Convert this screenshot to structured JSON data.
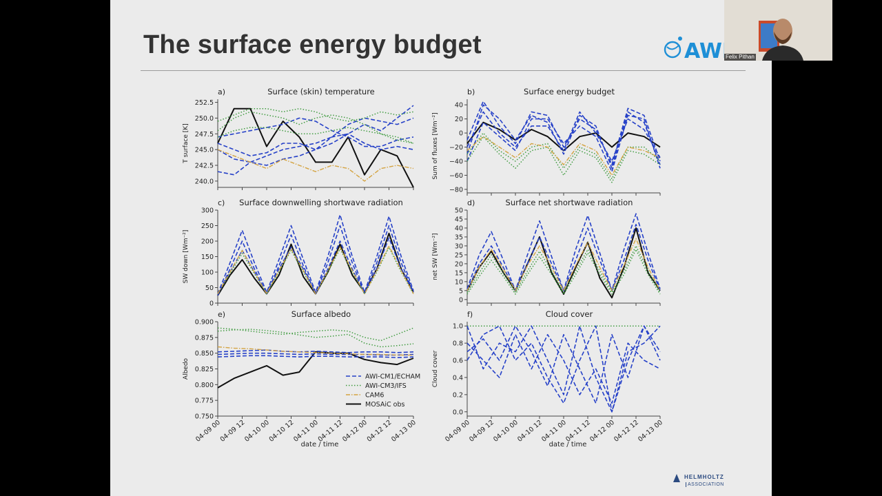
{
  "slide": {
    "title": "The surface energy budget",
    "logo_text": "AWI",
    "footer_logo": {
      "name": "HELMHOLTZ",
      "sub": "ASSOCIATION"
    }
  },
  "webcam": {
    "presenter_name": "Felix Pithan"
  },
  "colors": {
    "awi": "#2540c8",
    "ifs": "#3f9b3f",
    "cam": "#d4a340",
    "obs": "#111111"
  },
  "x_axis": {
    "xlabel": "date / time",
    "tick_labels": [
      "04-09 00",
      "04-09 12",
      "04-10 00",
      "04-10 12",
      "04-11 00",
      "04-11 12",
      "04-12 00",
      "04-12 12",
      "04-13 00"
    ],
    "xlim": [
      0,
      96
    ]
  },
  "legend": {
    "location": "lower right of panel e",
    "entries": [
      {
        "label": "AWI-CM1/ECHAM",
        "style": "dashed",
        "color": "#2540c8"
      },
      {
        "label": "AWI-CM3/IFS",
        "style": "dotted",
        "color": "#3f9b3f"
      },
      {
        "label": "CAM6",
        "style": "dashdot",
        "color": "#d4a340"
      },
      {
        "label": "MOSAiC obs",
        "style": "solid",
        "color": "#111111"
      }
    ]
  },
  "chart_data": [
    {
      "panel": "a)",
      "type": "line",
      "title": "Surface (skin) temperature",
      "ylabel": "T surface [K]",
      "ylim": [
        239,
        253
      ],
      "yticks": [
        "240.0",
        "242.5",
        "245.0",
        "247.5",
        "250.0",
        "252.5"
      ],
      "x": [
        0,
        8,
        16,
        24,
        32,
        40,
        48,
        56,
        64,
        72,
        80,
        88,
        96
      ],
      "series": [
        {
          "name": "MOSAiC obs",
          "values": [
            246,
            251.5,
            251.5,
            245.5,
            249.5,
            247,
            243,
            243,
            247,
            241,
            245,
            244,
            239
          ]
        },
        {
          "name": "AWI-CM1/ECHAM",
          "values": [
            246,
            245,
            244,
            244.5,
            246,
            246,
            245,
            247,
            247.5,
            249,
            248,
            250,
            252
          ]
        },
        {
          "name": "AWI-CM1/ECHAM",
          "values": [
            245,
            243.5,
            243,
            242.5,
            243.5,
            244,
            245,
            246,
            247.5,
            246,
            245,
            245.5,
            245
          ]
        },
        {
          "name": "AWI-CM1/ECHAM",
          "values": [
            241.5,
            241,
            243,
            244,
            245,
            245.5,
            246,
            247,
            249,
            250,
            249.5,
            249,
            250
          ]
        },
        {
          "name": "AWI-CM1/ECHAM",
          "values": [
            247,
            247.5,
            248,
            248.5,
            249,
            250,
            249.5,
            248,
            247,
            245.5,
            245.5,
            246.5,
            247
          ]
        },
        {
          "name": "AWI-CM3/IFS",
          "values": [
            248,
            250,
            251,
            250.5,
            250,
            249,
            250,
            250.5,
            250,
            249,
            247.5,
            247,
            246
          ]
        },
        {
          "name": "AWI-CM3/IFS",
          "values": [
            249.5,
            250.5,
            251.5,
            251.5,
            251,
            251.5,
            251,
            250,
            249.5,
            250,
            251,
            250.5,
            251
          ]
        },
        {
          "name": "AWI-CM3/IFS",
          "values": [
            247,
            248,
            248.5,
            248.5,
            248,
            247.5,
            247.5,
            248,
            248.5,
            248,
            247.5,
            246.5,
            246
          ]
        },
        {
          "name": "CAM6",
          "values": [
            245,
            244,
            243,
            242,
            243.5,
            242.5,
            241.5,
            242.5,
            242,
            240,
            242,
            242.5,
            242
          ]
        }
      ]
    },
    {
      "panel": "b)",
      "type": "line",
      "title": "Surface energy budget",
      "ylabel": "Sum of fluxes [Wm⁻²]",
      "ylim": [
        -85,
        48
      ],
      "yticks": [
        "−80",
        "−60",
        "−40",
        "−20",
        "0",
        "20",
        "40"
      ],
      "x": [
        0,
        8,
        16,
        24,
        32,
        40,
        48,
        56,
        64,
        72,
        80,
        88,
        96
      ],
      "series": [
        {
          "name": "MOSAiC obs",
          "values": [
            -15,
            15,
            5,
            -10,
            5,
            -5,
            -25,
            -5,
            0,
            -20,
            0,
            -5,
            -20
          ]
        },
        {
          "name": "AWI-CM1/ECHAM",
          "values": [
            -30,
            40,
            20,
            -10,
            25,
            15,
            -30,
            25,
            10,
            -50,
            30,
            15,
            -45
          ]
        },
        {
          "name": "AWI-CM1/ECHAM",
          "values": [
            -20,
            30,
            0,
            -20,
            10,
            10,
            -25,
            30,
            0,
            -40,
            20,
            5,
            -35
          ]
        },
        {
          "name": "AWI-CM1/ECHAM",
          "values": [
            -40,
            15,
            -5,
            -25,
            20,
            20,
            -15,
            10,
            -5,
            -55,
            25,
            20,
            -50
          ]
        },
        {
          "name": "AWI-CM1/ECHAM",
          "values": [
            -10,
            45,
            10,
            -15,
            30,
            25,
            -20,
            20,
            5,
            -45,
            35,
            25,
            -40
          ]
        },
        {
          "name": "AWI-CM3/IFS",
          "values": [
            -40,
            -5,
            -30,
            -50,
            -25,
            -20,
            -60,
            -25,
            -35,
            -70,
            -25,
            -30,
            -45
          ]
        },
        {
          "name": "AWI-CM3/IFS",
          "values": [
            -30,
            0,
            -25,
            -40,
            -20,
            -15,
            -50,
            -20,
            -30,
            -65,
            -20,
            -20,
            -40
          ]
        },
        {
          "name": "CAM6",
          "values": [
            -25,
            -5,
            -20,
            -35,
            -15,
            -20,
            -45,
            -15,
            -25,
            -60,
            -20,
            -25,
            -35
          ]
        }
      ]
    },
    {
      "panel": "c)",
      "type": "line",
      "title": "Surface downwelling shortwave radiation",
      "ylabel": "SW down [Wm⁻²]",
      "ylim": [
        0,
        300
      ],
      "yticks": [
        "0",
        "50",
        "100",
        "150",
        "200",
        "250",
        "300"
      ],
      "x": [
        0,
        6,
        12,
        18,
        24,
        30,
        36,
        42,
        48,
        54,
        60,
        66,
        72,
        78,
        84,
        90,
        96
      ],
      "series": [
        {
          "name": "MOSAiC obs",
          "values": [
            25,
            90,
            140,
            80,
            30,
            90,
            190,
            85,
            30,
            100,
            190,
            90,
            35,
            110,
            225,
            110,
            35
          ]
        },
        {
          "name": "AWI-CM1/ECHAM",
          "values": [
            30,
            130,
            235,
            130,
            35,
            140,
            250,
            140,
            35,
            150,
            285,
            150,
            35,
            150,
            280,
            150,
            40
          ]
        },
        {
          "name": "AWI-CM1/ECHAM",
          "values": [
            25,
            110,
            200,
            110,
            30,
            120,
            220,
            120,
            30,
            130,
            250,
            130,
            30,
            130,
            250,
            130,
            35
          ]
        },
        {
          "name": "AWI-CM1/ECHAM",
          "values": [
            30,
            100,
            170,
            100,
            30,
            110,
            180,
            110,
            30,
            110,
            200,
            110,
            30,
            110,
            210,
            110,
            35
          ]
        },
        {
          "name": "AWI-CM3/IFS",
          "values": [
            30,
            95,
            160,
            95,
            30,
            100,
            170,
            100,
            30,
            100,
            175,
            100,
            30,
            100,
            180,
            100,
            30
          ]
        },
        {
          "name": "CAM6",
          "values": [
            30,
            100,
            170,
            100,
            30,
            105,
            175,
            105,
            30,
            105,
            180,
            105,
            30,
            105,
            185,
            105,
            30
          ]
        }
      ]
    },
    {
      "panel": "d)",
      "type": "line",
      "title": "Surface net shortwave radiation",
      "ylabel": "net SW [Wm⁻²]",
      "ylim": [
        -2,
        50
      ],
      "yticks": [
        "0",
        "5",
        "10",
        "15",
        "20",
        "25",
        "30",
        "35",
        "40",
        "45",
        "50"
      ],
      "x": [
        0,
        6,
        12,
        18,
        24,
        30,
        36,
        42,
        48,
        54,
        60,
        66,
        72,
        78,
        84,
        90,
        96
      ],
      "series": [
        {
          "name": "MOSAiC obs",
          "values": [
            5,
            18,
            27,
            15,
            5,
            20,
            35,
            15,
            3,
            18,
            32,
            12,
            1,
            18,
            40,
            15,
            5
          ]
        },
        {
          "name": "AWI-CM1/ECHAM",
          "values": [
            6,
            25,
            38,
            22,
            5,
            25,
            44,
            24,
            5,
            28,
            47,
            26,
            5,
            28,
            48,
            26,
            6
          ]
        },
        {
          "name": "AWI-CM1/ECHAM",
          "values": [
            5,
            20,
            30,
            18,
            5,
            20,
            35,
            20,
            5,
            22,
            40,
            22,
            5,
            22,
            42,
            22,
            5
          ]
        },
        {
          "name": "AWI-CM3/IFS",
          "values": [
            3,
            13,
            22,
            13,
            3,
            14,
            24,
            14,
            3,
            14,
            26,
            14,
            3,
            14,
            28,
            14,
            3
          ]
        },
        {
          "name": "AWI-CM3/IFS",
          "values": [
            4,
            15,
            25,
            15,
            4,
            16,
            27,
            16,
            4,
            16,
            28,
            16,
            4,
            16,
            30,
            16,
            4
          ]
        },
        {
          "name": "CAM6",
          "values": [
            5,
            18,
            28,
            17,
            5,
            19,
            30,
            18,
            5,
            19,
            32,
            18,
            5,
            19,
            34,
            18,
            5
          ]
        }
      ]
    },
    {
      "panel": "e)",
      "type": "line",
      "title": "Surface albedo",
      "ylabel": "Albedo",
      "ylim": [
        0.75,
        0.9
      ],
      "yticks": [
        "0.750",
        "0.775",
        "0.800",
        "0.825",
        "0.850",
        "0.875",
        "0.900"
      ],
      "x": [
        0,
        8,
        16,
        24,
        32,
        40,
        48,
        56,
        64,
        72,
        80,
        88,
        96
      ],
      "series": [
        {
          "name": "MOSAiC obs",
          "values": [
            0.795,
            0.81,
            0.82,
            0.83,
            0.815,
            0.82,
            0.852,
            0.85,
            0.85,
            0.84,
            0.835,
            0.832,
            0.842
          ]
        },
        {
          "name": "AWI-CM1/ECHAM",
          "values": [
            0.852,
            0.853,
            0.854,
            0.855,
            0.853,
            0.852,
            0.853,
            0.852,
            0.851,
            0.852,
            0.852,
            0.851,
            0.852
          ]
        },
        {
          "name": "AWI-CM1/ECHAM",
          "values": [
            0.848,
            0.849,
            0.85,
            0.85,
            0.849,
            0.848,
            0.849,
            0.848,
            0.848,
            0.848,
            0.847,
            0.847,
            0.848
          ]
        },
        {
          "name": "AWI-CM1/ECHAM",
          "values": [
            0.844,
            0.845,
            0.846,
            0.846,
            0.845,
            0.844,
            0.845,
            0.845,
            0.844,
            0.844,
            0.844,
            0.843,
            0.844
          ]
        },
        {
          "name": "AWI-CM3/IFS",
          "values": [
            0.89,
            0.888,
            0.885,
            0.882,
            0.88,
            0.883,
            0.885,
            0.887,
            0.885,
            0.875,
            0.87,
            0.88,
            0.89
          ]
        },
        {
          "name": "AWI-CM3/IFS",
          "values": [
            0.885,
            0.887,
            0.888,
            0.886,
            0.883,
            0.879,
            0.875,
            0.877,
            0.88,
            0.866,
            0.86,
            0.862,
            0.865
          ]
        },
        {
          "name": "CAM6",
          "values": [
            0.86,
            0.858,
            0.857,
            0.855,
            0.853,
            0.852,
            0.851,
            0.85,
            0.849,
            0.848,
            0.848,
            0.847,
            0.847
          ]
        }
      ]
    },
    {
      "panel": "f)",
      "type": "line",
      "title": "Cloud cover",
      "ylabel": "Cloud cover",
      "ylim": [
        -0.05,
        1.05
      ],
      "yticks": [
        "0.0",
        "0.2",
        "0.4",
        "0.6",
        "0.8",
        "1.0"
      ],
      "x": [
        0,
        8,
        16,
        24,
        32,
        40,
        48,
        56,
        64,
        72,
        80,
        88,
        96
      ],
      "series": [
        {
          "name": "AWI-CM3/IFS",
          "values": [
            1,
            1,
            1,
            1,
            1,
            1,
            1,
            1,
            1,
            1,
            1,
            1,
            1
          ]
        },
        {
          "name": "AWI-CM1/ECHAM",
          "values": [
            0.6,
            0.9,
            1,
            0.6,
            0.8,
            0.4,
            0.1,
            0.6,
            1,
            0,
            0.6,
            1,
            0.7
          ]
        },
        {
          "name": "AWI-CM1/ECHAM",
          "values": [
            0.8,
            0.6,
            0.4,
            0.9,
            0.5,
            0.9,
            0.6,
            0.2,
            0.5,
            0.1,
            0.8,
            0.6,
            0.5
          ]
        },
        {
          "name": "AWI-CM1/ECHAM",
          "values": [
            0.7,
            0.85,
            0.6,
            1,
            0.7,
            0.3,
            0.9,
            0.5,
            0.1,
            0.9,
            0.4,
            1,
            0.6
          ]
        },
        {
          "name": "AWI-CM1/ECHAM",
          "values": [
            1,
            0.5,
            0.8,
            0.7,
            1,
            0.6,
            0.2,
            1,
            0.4,
            0,
            0.7,
            0.8,
            1
          ]
        }
      ]
    }
  ]
}
